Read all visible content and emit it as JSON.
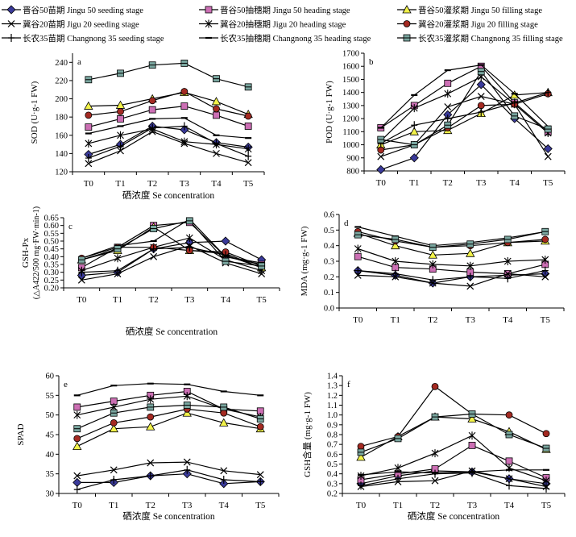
{
  "legend": [
    {
      "label": "晋谷50苗期 Jingu 50 seeding stage",
      "marker": "diamond",
      "fill": "#3a3a9a"
    },
    {
      "label": "晋谷50抽穗期 Jingu 50 heading stage",
      "marker": "square",
      "fill": "#cc6fb4"
    },
    {
      "label": "晋谷50灌浆期 Jingu 50 filling stage",
      "marker": "triangle",
      "fill": "#f2f24a"
    },
    {
      "label": "冀谷20苗期 Jigu 20 seeding stage",
      "marker": "x",
      "fill": "#000000"
    },
    {
      "label": "冀谷20抽穗期 Jigu 20 heading stage",
      "marker": "star",
      "fill": "#000000"
    },
    {
      "label": "冀谷20灌浆期 Jigu 20 filling stage",
      "marker": "circle",
      "fill": "#a42a22"
    },
    {
      "label": "长农35苗期 Changnong 35 seeding stage",
      "marker": "plus",
      "fill": "#000000"
    },
    {
      "label": "长农35抽穗期 Changnong 35 heading stage",
      "marker": "dash",
      "fill": "#000000"
    },
    {
      "label": "长农35灌浆期 Changnong 35 filling stage",
      "marker": "square-hline",
      "fill": "#7aa7a0"
    }
  ],
  "chart_data": [
    {
      "type": "line",
      "panel": "a",
      "ylabel": "SOD (U·g-1 FW)",
      "xlabel": "硒浓度 Se concentration",
      "categories": [
        "T0",
        "T1",
        "T2",
        "T3",
        "T4",
        "T5"
      ],
      "ylim": [
        120,
        250
      ],
      "yticks": [
        120,
        140,
        160,
        180,
        200,
        220,
        240
      ],
      "series": [
        {
          "name": "晋谷50苗期 Jingu 50 seeding stage",
          "values": [
            139,
            150,
            170,
            166,
            152,
            147
          ]
        },
        {
          "name": "晋谷50抽穗期 Jingu 50 heading stage",
          "values": [
            169,
            178,
            188,
            192,
            182,
            170
          ]
        },
        {
          "name": "晋谷50灌浆期 Jingu 50 filling stage",
          "values": [
            192,
            193,
            200,
            207,
            197,
            183
          ]
        },
        {
          "name": "冀谷20苗期 Jigu 20 seeding stage",
          "values": [
            129,
            143,
            164,
            151,
            140,
            130
          ]
        },
        {
          "name": "冀谷20抽穗期 Jigu 20 heading stage",
          "values": [
            151,
            160,
            167,
            153,
            150,
            145
          ]
        },
        {
          "name": "冀谷20灌浆期 Jigu 20 filling stage",
          "values": [
            182,
            186,
            198,
            208,
            189,
            181
          ]
        },
        {
          "name": "长农35苗期 Changnong 35 seeding stage",
          "values": [
            135,
            148,
            168,
            170,
            151,
            137
          ]
        },
        {
          "name": "长农35抽穗期 Changnong 35 heading stage",
          "values": [
            162,
            170,
            178,
            179,
            160,
            157
          ]
        },
        {
          "name": "长农35灌浆期 Changnong 35 filling stage",
          "values": [
            221,
            228,
            237,
            239,
            222,
            213
          ]
        }
      ]
    },
    {
      "type": "line",
      "panel": "b",
      "ylabel": "POD (U·g-1 FW)",
      "xlabel": "",
      "categories": [
        "T0",
        "T1",
        "T2",
        "T3",
        "T4",
        "T5"
      ],
      "ylim": [
        800,
        1700
      ],
      "yticks": [
        800,
        900,
        1000,
        1100,
        1200,
        1300,
        1400,
        1500,
        1600,
        1700
      ],
      "series": [
        {
          "name": "晋谷50苗期 Jingu 50 seeding stage",
          "values": [
            810,
            900,
            1230,
            1460,
            1200,
            970
          ]
        },
        {
          "name": "晋谷50抽穗期 Jingu 50 heading stage",
          "values": [
            1130,
            1300,
            1470,
            1600,
            1320,
            1100
          ]
        },
        {
          "name": "晋谷50灌浆期 Jingu 50 filling stage",
          "values": [
            1000,
            1100,
            1110,
            1240,
            1380,
            1400
          ]
        },
        {
          "name": "冀谷20苗期 Jigu 20 seeding stage",
          "values": [
            910,
            1000,
            1290,
            1370,
            1310,
            910
          ]
        },
        {
          "name": "冀谷20抽穗期 Jigu 20 heading stage",
          "values": [
            1030,
            1280,
            1390,
            1520,
            1310,
            1090
          ]
        },
        {
          "name": "冀谷20灌浆期 Jigu 20 filling stage",
          "values": [
            960,
            1000,
            1130,
            1300,
            1310,
            1390
          ]
        },
        {
          "name": "长农35苗期 Changnong 35 seeding stage",
          "values": [
            1010,
            1150,
            1200,
            1250,
            1320,
            1400
          ]
        },
        {
          "name": "长农35抽穗期 Changnong 35 heading stage",
          "values": [
            1130,
            1380,
            1570,
            1610,
            1390,
            1140
          ]
        },
        {
          "name": "长农35灌浆期 Changnong 35 filling stage",
          "values": [
            1040,
            1000,
            1150,
            1560,
            1220,
            1120
          ]
        }
      ]
    },
    {
      "type": "line",
      "panel": "c",
      "ylabel": "GSH-Px",
      "ylabel2": "(△A422/500 mg·FW·min-1)",
      "xlabel": "硒浓度 Se concentration",
      "categories": [
        "T0",
        "T1",
        "T2",
        "T3",
        "T4",
        "T5"
      ],
      "ylim": [
        0.2,
        0.65
      ],
      "yticks": [
        0.2,
        0.25,
        0.3,
        0.35,
        0.4,
        0.45,
        0.5,
        0.55,
        0.6,
        0.65
      ],
      "series": [
        {
          "name": "晋谷50苗期 Jingu 50 seeding stage",
          "values": [
            0.28,
            0.3,
            0.45,
            0.49,
            0.5,
            0.38
          ]
        },
        {
          "name": "晋谷50抽穗期 Jingu 50 heading stage",
          "values": [
            0.33,
            0.46,
            0.6,
            0.62,
            0.4,
            0.35
          ]
        },
        {
          "name": "晋谷50灌浆期 Jingu 50 filling stage",
          "values": [
            0.38,
            0.44,
            0.59,
            0.44,
            0.42,
            0.33
          ]
        },
        {
          "name": "冀谷20苗期 Jigu 20 seeding stage",
          "values": [
            0.25,
            0.29,
            0.4,
            0.47,
            0.36,
            0.29
          ]
        },
        {
          "name": "冀谷20抽穗期 Jigu 20 heading stage",
          "values": [
            0.31,
            0.39,
            0.46,
            0.52,
            0.38,
            0.31
          ]
        },
        {
          "name": "冀谷20灌浆期 Jigu 20 filling stage",
          "values": [
            0.39,
            0.46,
            0.46,
            0.44,
            0.43,
            0.34
          ]
        },
        {
          "name": "长农35苗期 Changnong 35 seeding stage",
          "values": [
            0.3,
            0.31,
            0.45,
            0.46,
            0.41,
            0.33
          ]
        },
        {
          "name": "长农35抽穗期 Changnong 35 heading stage",
          "values": [
            0.39,
            0.47,
            0.5,
            0.64,
            0.4,
            0.36
          ]
        },
        {
          "name": "长农35灌浆期 Changnong 35 filling stage",
          "values": [
            0.38,
            0.45,
            0.58,
            0.63,
            0.37,
            0.34
          ]
        }
      ]
    },
    {
      "type": "line",
      "panel": "d",
      "ylabel": "MDA (mg·g-1 FW)",
      "xlabel": "",
      "categories": [
        "T0",
        "T1",
        "T2",
        "T3",
        "T4",
        "T5"
      ],
      "ylim": [
        0,
        0.6
      ],
      "yticks": [
        0,
        0.1,
        0.2,
        0.3,
        0.4,
        0.5,
        0.6
      ],
      "series": [
        {
          "name": "晋谷50苗期 Jingu 50 seeding stage",
          "values": [
            0.24,
            0.21,
            0.16,
            0.2,
            0.21,
            0.22
          ]
        },
        {
          "name": "晋谷50抽穗期 Jingu 50 heading stage",
          "values": [
            0.33,
            0.26,
            0.25,
            0.23,
            0.22,
            0.28
          ]
        },
        {
          "name": "晋谷50灌浆期 Jingu 50 filling stage",
          "values": [
            0.48,
            0.4,
            0.34,
            0.35,
            0.42,
            0.43
          ]
        },
        {
          "name": "冀谷20苗期 Jigu 20 seeding stage",
          "values": [
            0.21,
            0.2,
            0.16,
            0.14,
            0.22,
            0.2
          ]
        },
        {
          "name": "冀谷20抽穗期 Jigu 20 heading stage",
          "values": [
            0.38,
            0.3,
            0.28,
            0.27,
            0.3,
            0.31
          ]
        },
        {
          "name": "冀谷20灌浆期 Jigu 20 filling stage",
          "values": [
            0.49,
            0.43,
            0.39,
            0.4,
            0.42,
            0.44
          ]
        },
        {
          "name": "长农35苗期 Changnong 35 seeding stage",
          "values": [
            0.24,
            0.22,
            0.18,
            0.2,
            0.19,
            0.24
          ]
        },
        {
          "name": "长农35抽穗期 Changnong 35 heading stage",
          "values": [
            0.52,
            0.46,
            0.4,
            0.42,
            0.45,
            0.49
          ]
        },
        {
          "name": "长农35灌浆期 Changnong 35 filling stage",
          "values": [
            0.47,
            0.44,
            0.39,
            0.41,
            0.44,
            0.49
          ]
        }
      ]
    },
    {
      "type": "line",
      "panel": "e",
      "ylabel": "SPAD",
      "xlabel": "硒浓度 Se concentration",
      "categories": [
        "T0",
        "T1",
        "T2",
        "T3",
        "T4",
        "T5"
      ],
      "ylim": [
        30,
        60
      ],
      "yticks": [
        30,
        35,
        40,
        45,
        50,
        55,
        60
      ],
      "series": [
        {
          "name": "晋谷50苗期 Jingu 50 seeding stage",
          "values": [
            32.8,
            32.8,
            34.5,
            35.0,
            32.5,
            33.0
          ]
        },
        {
          "name": "晋谷50抽穗期 Jingu 50 heading stage",
          "values": [
            52.0,
            53.5,
            55.0,
            56.0,
            51.5,
            51.0
          ]
        },
        {
          "name": "晋谷50灌浆期 Jingu 50 filling stage",
          "values": [
            42.0,
            46.5,
            47.0,
            50.5,
            48.0,
            46.5
          ]
        },
        {
          "name": "冀谷20苗期 Jigu 20 seeding stage",
          "values": [
            34.5,
            36.0,
            37.8,
            38.0,
            35.8,
            34.8
          ]
        },
        {
          "name": "冀谷20抽穗期 Jigu 20 heading stage",
          "values": [
            50.0,
            52.0,
            54.0,
            54.8,
            51.5,
            49.5
          ]
        },
        {
          "name": "冀谷20灌浆期 Jigu 20 filling stage",
          "values": [
            44.0,
            48.0,
            49.5,
            51.5,
            50.5,
            47.0
          ]
        },
        {
          "name": "长农35苗期 Changnong 35 seeding stage",
          "values": [
            31.0,
            33.5,
            34.5,
            36.0,
            33.5,
            33.0
          ]
        },
        {
          "name": "长农35抽穗期 Changnong 35 heading stage",
          "values": [
            55.0,
            57.5,
            58.0,
            57.8,
            56.0,
            55.0
          ]
        },
        {
          "name": "长农35灌浆期 Changnong 35 filling stage",
          "values": [
            46.5,
            50.5,
            52.0,
            52.5,
            52.0,
            49.0
          ]
        }
      ]
    },
    {
      "type": "line",
      "panel": "f",
      "ylabel": "GSH含量 (mg·g-1 FW)",
      "xlabel": "硒浓度 Se concentration",
      "categories": [
        "T0",
        "T1",
        "T2",
        "T3",
        "T4",
        "T5"
      ],
      "ylim": [
        0.2,
        1.4
      ],
      "yticks": [
        0.2,
        0.3,
        0.4,
        0.5,
        0.6,
        0.7,
        0.8,
        0.9,
        1.0,
        1.1,
        1.2,
        1.3,
        1.4
      ],
      "series": [
        {
          "name": "晋谷50苗期 Jingu 50 seeding stage",
          "values": [
            0.3,
            0.38,
            0.43,
            0.42,
            0.35,
            0.3
          ]
        },
        {
          "name": "晋谷50抽穗期 Jingu 50 heading stage",
          "values": [
            0.34,
            0.4,
            0.45,
            0.69,
            0.53,
            0.36
          ]
        },
        {
          "name": "晋谷50灌浆期 Jingu 50 filling stage",
          "values": [
            0.57,
            0.78,
            0.98,
            0.96,
            0.83,
            0.65
          ]
        },
        {
          "name": "冀谷20苗期 Jigu 20 seeding stage",
          "values": [
            0.27,
            0.32,
            0.33,
            0.43,
            0.35,
            0.27
          ]
        },
        {
          "name": "冀谷20抽穗期 Jigu 20 heading stage",
          "values": [
            0.38,
            0.46,
            0.61,
            0.79,
            0.46,
            0.33
          ]
        },
        {
          "name": "冀谷20灌浆期 Jigu 20 filling stage",
          "values": [
            0.68,
            0.78,
            1.29,
            1.01,
            1.0,
            0.81
          ]
        },
        {
          "name": "长农35苗期 Changnong 35 seeding stage",
          "values": [
            0.28,
            0.35,
            0.4,
            0.41,
            0.28,
            0.25
          ]
        },
        {
          "name": "长农35抽穗期 Changnong 35 heading stage",
          "values": [
            0.39,
            0.42,
            0.41,
            0.42,
            0.44,
            0.44
          ]
        },
        {
          "name": "长农35灌浆期 Changnong 35 filling stage",
          "values": [
            0.62,
            0.76,
            0.98,
            1.01,
            0.8,
            0.66
          ]
        }
      ]
    }
  ]
}
